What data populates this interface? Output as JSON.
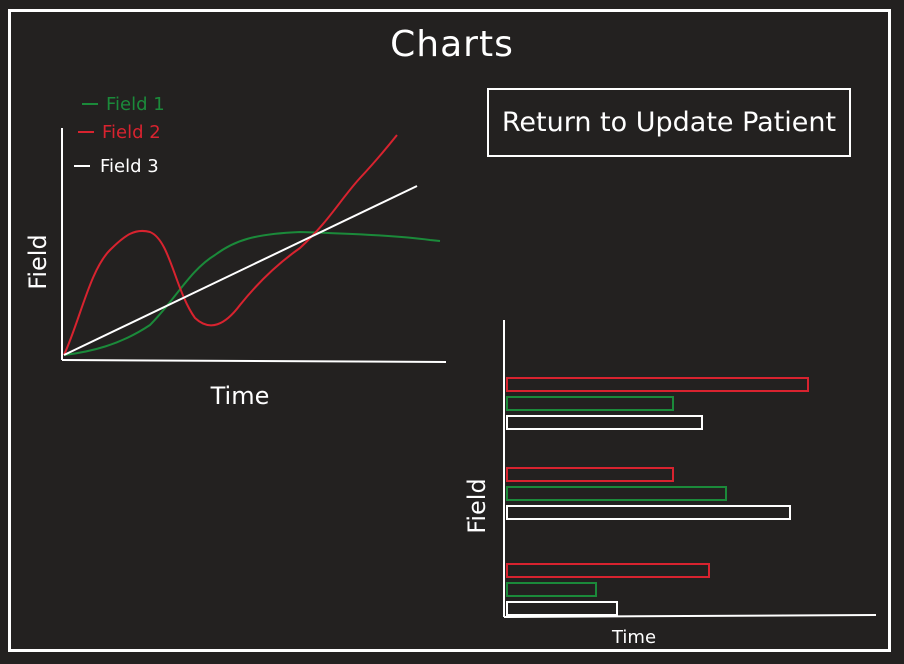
{
  "page": {
    "title": "Charts",
    "return_button_label": "Return to Update Patient"
  },
  "colors": {
    "background": "#232120",
    "field1": "#1b8a3a",
    "field2": "#d8232f",
    "field3": "#ffffff"
  },
  "chart_data": [
    {
      "type": "line",
      "xlabel": "Time",
      "ylabel": "Field",
      "legend_placement": "top-left",
      "series": [
        {
          "name": "Field 1",
          "color": "#1b8a3a"
        },
        {
          "name": "Field 2",
          "color": "#d8232f"
        },
        {
          "name": "Field 3",
          "color": "#ffffff"
        }
      ]
    },
    {
      "type": "bar",
      "orientation": "horizontal",
      "xlabel": "Time",
      "ylabel": "Field",
      "groups": [
        {
          "bars": [
            {
              "color": "#d8232f",
              "value": 0.85
            },
            {
              "color": "#1b8a3a",
              "value": 0.47
            },
            {
              "color": "#ffffff",
              "value": 0.55
            }
          ]
        },
        {
          "bars": [
            {
              "color": "#d8232f",
              "value": 0.47
            },
            {
              "color": "#1b8a3a",
              "value": 0.62
            },
            {
              "color": "#ffffff",
              "value": 0.8
            }
          ]
        },
        {
          "bars": [
            {
              "color": "#d8232f",
              "value": 0.57
            },
            {
              "color": "#1b8a3a",
              "value": 0.25
            },
            {
              "color": "#ffffff",
              "value": 0.31
            }
          ]
        }
      ]
    }
  ]
}
